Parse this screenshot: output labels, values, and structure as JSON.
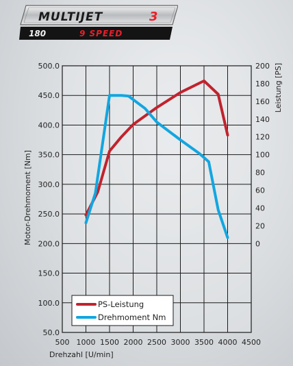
{
  "badge": {
    "line1": "MULTIJET",
    "line1_number": "3",
    "line2_number": "180",
    "line2_text": "9 SPEED",
    "accent": "#e8202a"
  },
  "chart_data": {
    "type": "line",
    "xlabel": "Drehzahl [U/min]",
    "ylabel_left": "Motor-Drehmoment [Nm]",
    "ylabel_right": "Leistung [PS]",
    "xlim": [
      500,
      4500
    ],
    "ylim_left": [
      50,
      500
    ],
    "ylim_right": [
      0,
      200
    ],
    "x_ticks": [
      "500",
      "1000",
      "1500",
      "2000",
      "2500",
      "3000",
      "3500",
      "4000",
      "4500"
    ],
    "y_left_ticks": [
      "50.0",
      "100.0",
      "150.0",
      "200.0",
      "250.0",
      "300.0",
      "350.0",
      "400.0",
      "450.0",
      "500.0"
    ],
    "y_right_ticks": [
      "0",
      "20",
      "40",
      "60",
      "80",
      "100",
      "120",
      "140",
      "160",
      "180",
      "200"
    ],
    "grid": true,
    "legend_position": "bottom-left",
    "series": [
      {
        "name": "PS-Leistung",
        "axis": "right",
        "color": "#c0232e",
        "x": [
          1000,
          1250,
          1500,
          1750,
          2000,
          2500,
          3000,
          3500,
          3800,
          4000
        ],
        "y": [
          32,
          58,
          104,
          120,
          134,
          153,
          170,
          183,
          168,
          122
        ]
      },
      {
        "name": "Drehmoment Nm",
        "axis": "left",
        "color": "#12a6e0",
        "x": [
          1000,
          1200,
          1500,
          1750,
          1900,
          2250,
          2500,
          3000,
          3400,
          3600,
          3800,
          4000
        ],
        "y": [
          235,
          285,
          450,
          450,
          449,
          428,
          405,
          375,
          352,
          338,
          257,
          210
        ]
      }
    ]
  }
}
